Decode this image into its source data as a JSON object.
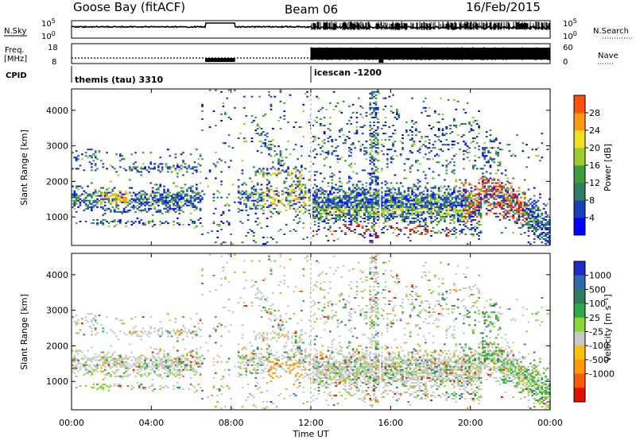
{
  "header": {
    "station": "Goose Bay (fitACF)",
    "beam": "Beam 06",
    "date": "16/Feb/2015"
  },
  "strip_labels": {
    "nsky": "N.Sky",
    "nsearch": "N.Search",
    "freq_line1": "Freq.",
    "freq_line2": "[MHz]",
    "nave": "Nave",
    "cpid": "CPID"
  },
  "strip_ticks": {
    "noise_left": [
      "10^5",
      "10^0"
    ],
    "noise_right": [
      "10^5",
      "10^0"
    ],
    "freq_left": [
      "18",
      "8"
    ],
    "nave_right": [
      "60",
      "0"
    ]
  },
  "cpid_segments": [
    {
      "name": "themis (tau) 3310",
      "start_hour": 0
    },
    {
      "name": "icescan -1200",
      "start_hour": 12
    }
  ],
  "colors": {
    "power_scale": [
      "#0000ff",
      "#1a3fb8",
      "#2e7d5e",
      "#3e9b3e",
      "#9ccd2d",
      "#f0e020",
      "#ff9a10",
      "#ff5010",
      "#e00000"
    ],
    "velocity_scale": [
      "#1c2cc4",
      "#2e6aa8",
      "#2e7d5e",
      "#2ea84a",
      "#8bd43a",
      "#c8c8c8",
      "#ffc000",
      "#ff9a00",
      "#ff5a00",
      "#e01000"
    ],
    "groundscatter": "#c8c8c8"
  },
  "chart_data": [
    {
      "type": "heatmap",
      "panel": "power",
      "xlabel": "",
      "ylabel": "Slant Range [km]",
      "xlim_hours": [
        0,
        24
      ],
      "ylim": [
        200,
        4600
      ],
      "y_ticks": [
        1000,
        2000,
        3000,
        4000
      ],
      "colorbar_label": "Power [dB]",
      "colorbar_ticks": [
        "4",
        "8",
        "12",
        "16",
        "20",
        "24",
        "28"
      ],
      "colorbar_range": [
        0,
        30
      ]
    },
    {
      "type": "heatmap",
      "panel": "velocity",
      "xlabel": "Time UT",
      "ylabel": "Slant Range [km]",
      "xlim_hours": [
        0,
        24
      ],
      "ylim": [
        200,
        4600
      ],
      "y_ticks": [
        1000,
        2000,
        3000,
        4000
      ],
      "x_ticks": [
        "00:00",
        "04:00",
        "08:00",
        "12:00",
        "16:00",
        "20:00",
        "00:00"
      ],
      "colorbar_label": "Velocity [m s⁻¹]",
      "colorbar_ticks": [
        "1000",
        "500",
        "100",
        "25",
        "-25",
        "-100",
        "-500",
        "-1000"
      ]
    }
  ]
}
